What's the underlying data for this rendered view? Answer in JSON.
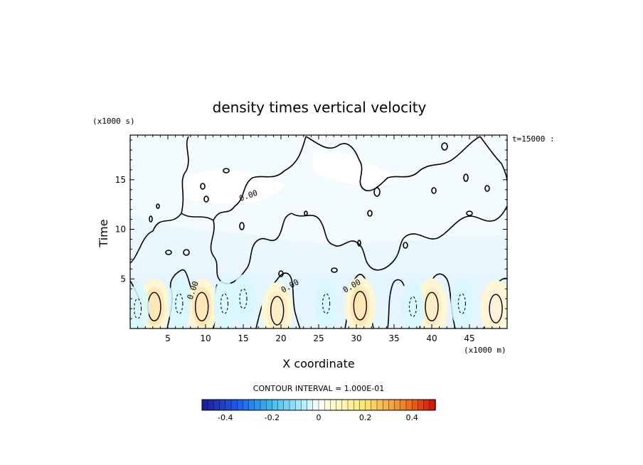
{
  "chart_data": {
    "type": "heatmap",
    "title": "density times vertical velocity",
    "xlabel": "X coordinate",
    "ylabel": "Time",
    "x_unit": "(x1000 m)",
    "y_unit": "(x1000 s)",
    "time_stamp": "t=15000 :",
    "xlim": [
      0,
      50
    ],
    "ylim": [
      0,
      19.5
    ],
    "x_ticks": [
      5,
      10,
      15,
      20,
      25,
      30,
      35,
      40,
      45
    ],
    "y_ticks": [
      5,
      10,
      15
    ],
    "contour_label": "0.00",
    "contour_interval_text": "CONTOUR INTERVAL = 1.000E-01",
    "colorbar": {
      "range": [
        -0.5,
        0.5
      ],
      "ticks": [
        -0.4,
        -0.2,
        0,
        0.2,
        0.4
      ],
      "tick_labels": [
        "-0.4",
        "-0.2",
        "0",
        "0.2",
        "0.4"
      ],
      "colors_low": "#1a1aa0",
      "colors_mid": "#ffffff",
      "colors_high": "#c8140a"
    },
    "positive_cells": [
      {
        "x": 3.2,
        "t": 2.2,
        "value": 0.2
      },
      {
        "x": 9.5,
        "t": 2.2,
        "value": 0.2
      },
      {
        "x": 19.5,
        "t": 1.8,
        "value": 0.15
      },
      {
        "x": 30.5,
        "t": 2.3,
        "value": 0.2
      },
      {
        "x": 40.0,
        "t": 2.2,
        "value": 0.15
      },
      {
        "x": 48.5,
        "t": 2.0,
        "value": 0.1
      }
    ],
    "negative_cells": [
      {
        "x": 1.0,
        "t": 2.0,
        "value": -0.1
      },
      {
        "x": 6.5,
        "t": 2.5,
        "value": -0.1
      },
      {
        "x": 12.5,
        "t": 2.5,
        "value": -0.1
      },
      {
        "x": 15.0,
        "t": 3.0,
        "value": -0.1
      },
      {
        "x": 26.0,
        "t": 2.5,
        "value": -0.1
      },
      {
        "x": 37.5,
        "t": 2.2,
        "value": -0.1
      },
      {
        "x": 44.0,
        "t": 2.5,
        "value": -0.1
      }
    ]
  }
}
